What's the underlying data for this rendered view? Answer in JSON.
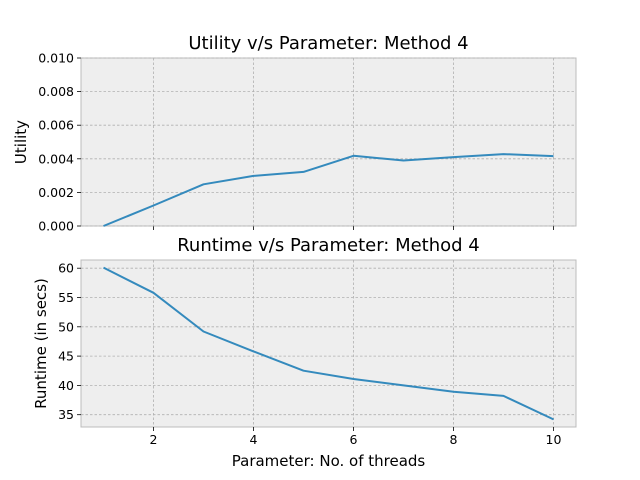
{
  "chart_data": [
    {
      "type": "line",
      "title": "Utility v/s Parameter: Method 4",
      "xlabel": "",
      "ylabel": "Utility",
      "xlim": [
        0.55,
        10.45
      ],
      "ylim": [
        0.0,
        0.01
      ],
      "xticks": [
        2,
        4,
        6,
        8,
        10
      ],
      "xtick_labels_shown": false,
      "yticks": [
        "0.000",
        "0.002",
        "0.004",
        "0.006",
        "0.008",
        "0.010"
      ],
      "grid": true,
      "x": [
        1,
        2,
        3,
        4,
        5,
        6,
        7,
        8,
        9,
        10
      ],
      "series": [
        {
          "values": [
            0.0,
            0.00122,
            0.00248,
            0.00298,
            0.00322,
            0.00418,
            0.0039,
            0.0041,
            0.00428,
            0.00416
          ],
          "color": "#348abd"
        }
      ]
    },
    {
      "type": "line",
      "title": "Runtime v/s Parameter: Method 4",
      "xlabel": "Parameter: No. of threads",
      "ylabel": "Runtime (in secs)",
      "xlim": [
        0.55,
        10.45
      ],
      "ylim": [
        32.9,
        61.4
      ],
      "xticks": [
        "2",
        "4",
        "6",
        "8",
        "10"
      ],
      "yticks": [
        "35",
        "40",
        "45",
        "50",
        "55",
        "60"
      ],
      "grid": true,
      "x": [
        1,
        2,
        3,
        4,
        5,
        6,
        7,
        8,
        9,
        10
      ],
      "series": [
        {
          "values": [
            60.1,
            55.8,
            49.2,
            45.8,
            42.5,
            41.1,
            40.0,
            38.9,
            38.2,
            34.2
          ],
          "color": "#348abd"
        }
      ]
    }
  ]
}
